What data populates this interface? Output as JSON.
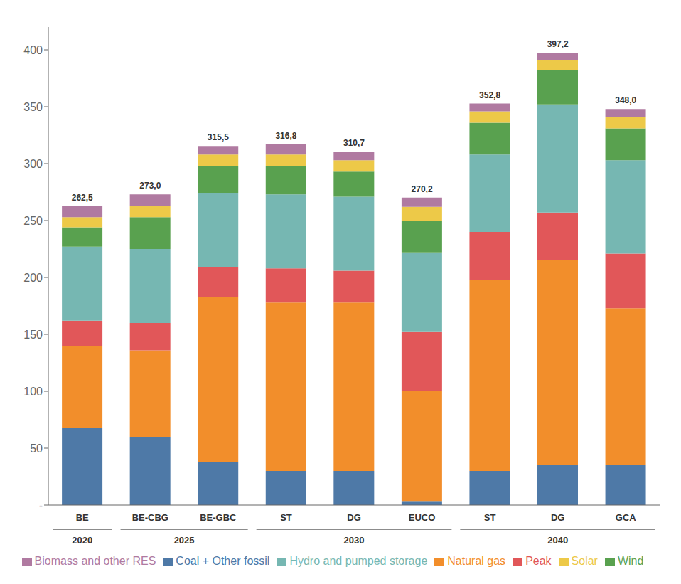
{
  "chart_data": {
    "type": "bar",
    "stacked": true,
    "categories": [
      "BE",
      "BE-CBG",
      "BE-GBC",
      "ST",
      "DG",
      "EUCO",
      "ST",
      "DG",
      "GCA"
    ],
    "series": [
      {
        "name": "Coal + Other fossil",
        "values": [
          68,
          60,
          38,
          30,
          30,
          3,
          30,
          35,
          35
        ]
      },
      {
        "name": "Natural gas",
        "values": [
          72,
          76,
          145,
          148,
          148,
          97,
          168,
          180,
          138
        ]
      },
      {
        "name": "Peak",
        "values": [
          22,
          24,
          26,
          30,
          28,
          52,
          42,
          42,
          48
        ]
      },
      {
        "name": "Hydro and pumped storage",
        "values": [
          65,
          65,
          65,
          65,
          65,
          70,
          68,
          95,
          82
        ]
      },
      {
        "name": "Wind",
        "values": [
          17,
          28,
          24,
          25,
          22,
          28,
          28,
          30,
          28
        ]
      },
      {
        "name": "Solar",
        "values": [
          9,
          10,
          10,
          10,
          10,
          12,
          10,
          9,
          10
        ]
      },
      {
        "name": "Biomass and other RES",
        "values": [
          9.5,
          10,
          7.5,
          8.8,
          7.7,
          8.2,
          6.8,
          6.2,
          7
        ]
      }
    ],
    "totals": [
      262.5,
      273.0,
      315.5,
      316.8,
      310.7,
      270.2,
      352.8,
      397.2,
      348.0
    ],
    "total_labels": [
      "262,5",
      "273,0",
      "315,5",
      "316,8",
      "310,7",
      "270,2",
      "352,8",
      "397,2",
      "348,0"
    ],
    "groups": [
      {
        "label": "2020",
        "count": 1
      },
      {
        "label": "2025",
        "count": 2
      },
      {
        "label": "2030",
        "count": 3
      },
      {
        "label": "2040",
        "count": 3
      }
    ],
    "ylim": [
      0,
      420
    ],
    "yticks": [
      {
        "value": 0,
        "label": "-"
      },
      50,
      100,
      150,
      200,
      250,
      300,
      350,
      400
    ],
    "grid": false,
    "legend": "bottom"
  }
}
